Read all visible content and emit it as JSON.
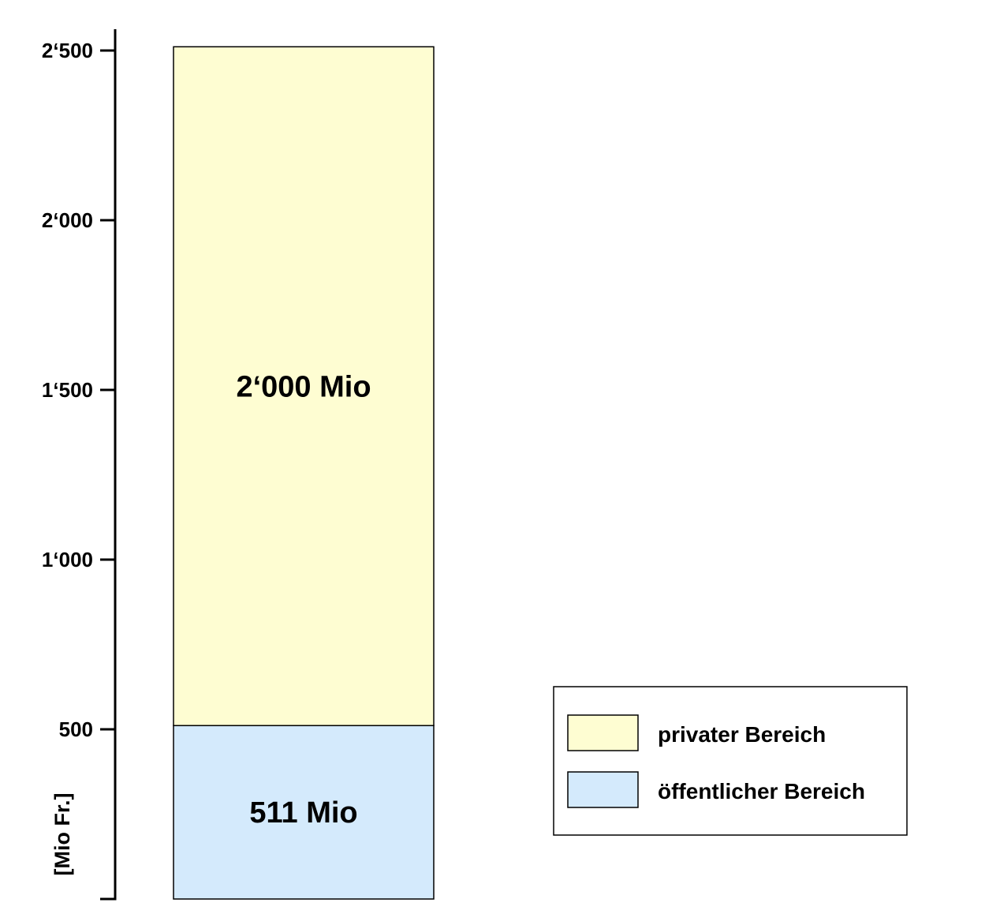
{
  "chart_data": {
    "type": "bar",
    "stacked": true,
    "categories": [
      ""
    ],
    "series": [
      {
        "name": "öffentlicher Bereich",
        "values": [
          511
        ],
        "label": "511 Mio",
        "color": "#d4eafc"
      },
      {
        "name": "privater Bereich",
        "values": [
          2000
        ],
        "label": "2‘000 Mio",
        "color": "#fefdd2"
      }
    ],
    "ylabel": "[Mio Fr.]",
    "ylim": [
      0,
      2550
    ],
    "yticks": [
      {
        "value": 500,
        "label": "500"
      },
      {
        "value": 1000,
        "label": "1‘000"
      },
      {
        "value": 1500,
        "label": "1‘500"
      },
      {
        "value": 2000,
        "label": "2‘000"
      },
      {
        "value": 2500,
        "label": "2‘500"
      }
    ],
    "grid": false,
    "legend": {
      "position": "bottom-right",
      "items": [
        {
          "label": "privater Bereich",
          "color": "#fefdd2"
        },
        {
          "label": "öffentlicher Bereich",
          "color": "#d4eafc"
        }
      ]
    }
  }
}
